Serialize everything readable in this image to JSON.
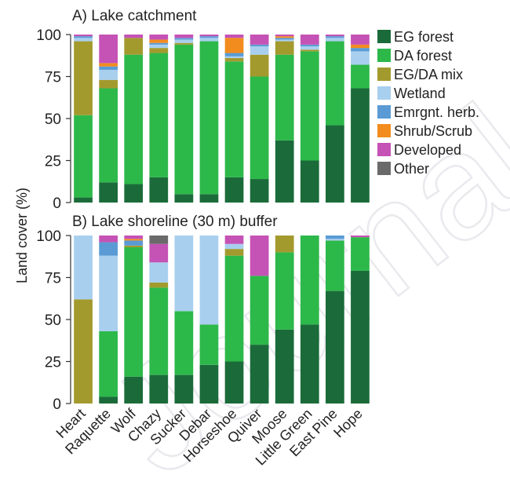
{
  "figure": {
    "y_axis_label": "Land cover (%)",
    "watermark": "Journal Pre"
  },
  "legend": {
    "items": [
      {
        "label": "EG forest",
        "color": "#1b6b3a"
      },
      {
        "label": "DA forest",
        "color": "#2db84a"
      },
      {
        "label": "EG/DA mix",
        "color": "#a39a2e"
      },
      {
        "label": "Wetland",
        "color": "#a8cfee"
      },
      {
        "label": "Emrgnt. herb.",
        "color": "#5a9bd5"
      },
      {
        "label": "Shrub/Scrub",
        "color": "#f28c1e"
      },
      {
        "label": "Developed",
        "color": "#c552b5"
      },
      {
        "label": "Other",
        "color": "#6a6a6a"
      }
    ]
  },
  "chart_data": [
    {
      "type": "bar",
      "stacked": true,
      "title": "A) Lake catchment",
      "ylim": [
        0,
        100
      ],
      "yticks": [
        0,
        25,
        50,
        75,
        100
      ],
      "categories": [
        "Heart",
        "Raquette",
        "Wolf",
        "Chazy",
        "Sucker",
        "Debar",
        "Horseshoe",
        "Quiver",
        "Moose",
        "Little Green",
        "East Pine",
        "Hope"
      ],
      "series": [
        {
          "name": "EG forest",
          "values": [
            3,
            12,
            11,
            15,
            5,
            5,
            15,
            14,
            37,
            25,
            46,
            68
          ]
        },
        {
          "name": "DA forest",
          "values": [
            49,
            56,
            77,
            74,
            89,
            91,
            69,
            61,
            51,
            65,
            50,
            14
          ]
        },
        {
          "name": "EG/DA mix",
          "values": [
            44,
            5,
            10,
            3,
            1,
            0,
            2,
            13,
            8,
            1,
            0,
            0
          ]
        },
        {
          "name": "Wetland",
          "values": [
            2,
            6,
            0,
            2,
            2,
            2,
            1,
            5,
            1,
            2,
            2,
            8
          ]
        },
        {
          "name": "Emrgnt. herb.",
          "values": [
            1,
            2,
            0,
            1,
            1,
            1,
            2,
            1,
            1,
            1,
            1,
            2
          ]
        },
        {
          "name": "Shrub/Scrub",
          "values": [
            0,
            2,
            0,
            2,
            0,
            0,
            9,
            0,
            1,
            0,
            0,
            2
          ]
        },
        {
          "name": "Developed",
          "values": [
            1,
            17,
            2,
            3,
            2,
            1,
            2,
            6,
            1,
            6,
            1,
            6
          ]
        },
        {
          "name": "Other",
          "values": [
            0,
            0,
            0,
            0,
            0,
            0,
            0,
            0,
            0,
            0,
            0,
            0
          ]
        }
      ]
    },
    {
      "type": "bar",
      "stacked": true,
      "title": "B) Lake shoreline (30 m) buffer",
      "ylim": [
        0,
        100
      ],
      "yticks": [
        0,
        25,
        50,
        75,
        100
      ],
      "categories": [
        "Heart",
        "Raquette",
        "Wolf",
        "Chazy",
        "Sucker",
        "Debar",
        "Horseshoe",
        "Quiver",
        "Moose",
        "Little Green",
        "East Pine",
        "Hope"
      ],
      "series": [
        {
          "name": "EG forest",
          "values": [
            0,
            4,
            16,
            17,
            17,
            23,
            25,
            35,
            44,
            47,
            67,
            79
          ]
        },
        {
          "name": "DA forest",
          "values": [
            0,
            39,
            77,
            52,
            38,
            24,
            63,
            41,
            46,
            53,
            30,
            20
          ]
        },
        {
          "name": "EG/DA mix",
          "values": [
            62,
            0,
            1,
            3,
            0,
            0,
            4,
            0,
            10,
            0,
            0,
            0
          ]
        },
        {
          "name": "Wetland",
          "values": [
            38,
            45,
            0,
            12,
            45,
            53,
            3,
            0,
            0,
            0,
            1,
            0
          ]
        },
        {
          "name": "Emrgnt. herb.",
          "values": [
            0,
            8,
            3,
            0,
            0,
            0,
            0,
            0,
            0,
            0,
            2,
            0
          ]
        },
        {
          "name": "Shrub/Scrub",
          "values": [
            0,
            0,
            1,
            0,
            0,
            0,
            0,
            0,
            0,
            0,
            0,
            0
          ]
        },
        {
          "name": "Developed",
          "values": [
            0,
            4,
            2,
            11,
            0,
            0,
            5,
            24,
            0,
            0,
            0,
            1
          ]
        },
        {
          "name": "Other",
          "values": [
            0,
            0,
            0,
            5,
            0,
            0,
            0,
            0,
            0,
            0,
            0,
            0
          ]
        }
      ]
    }
  ]
}
